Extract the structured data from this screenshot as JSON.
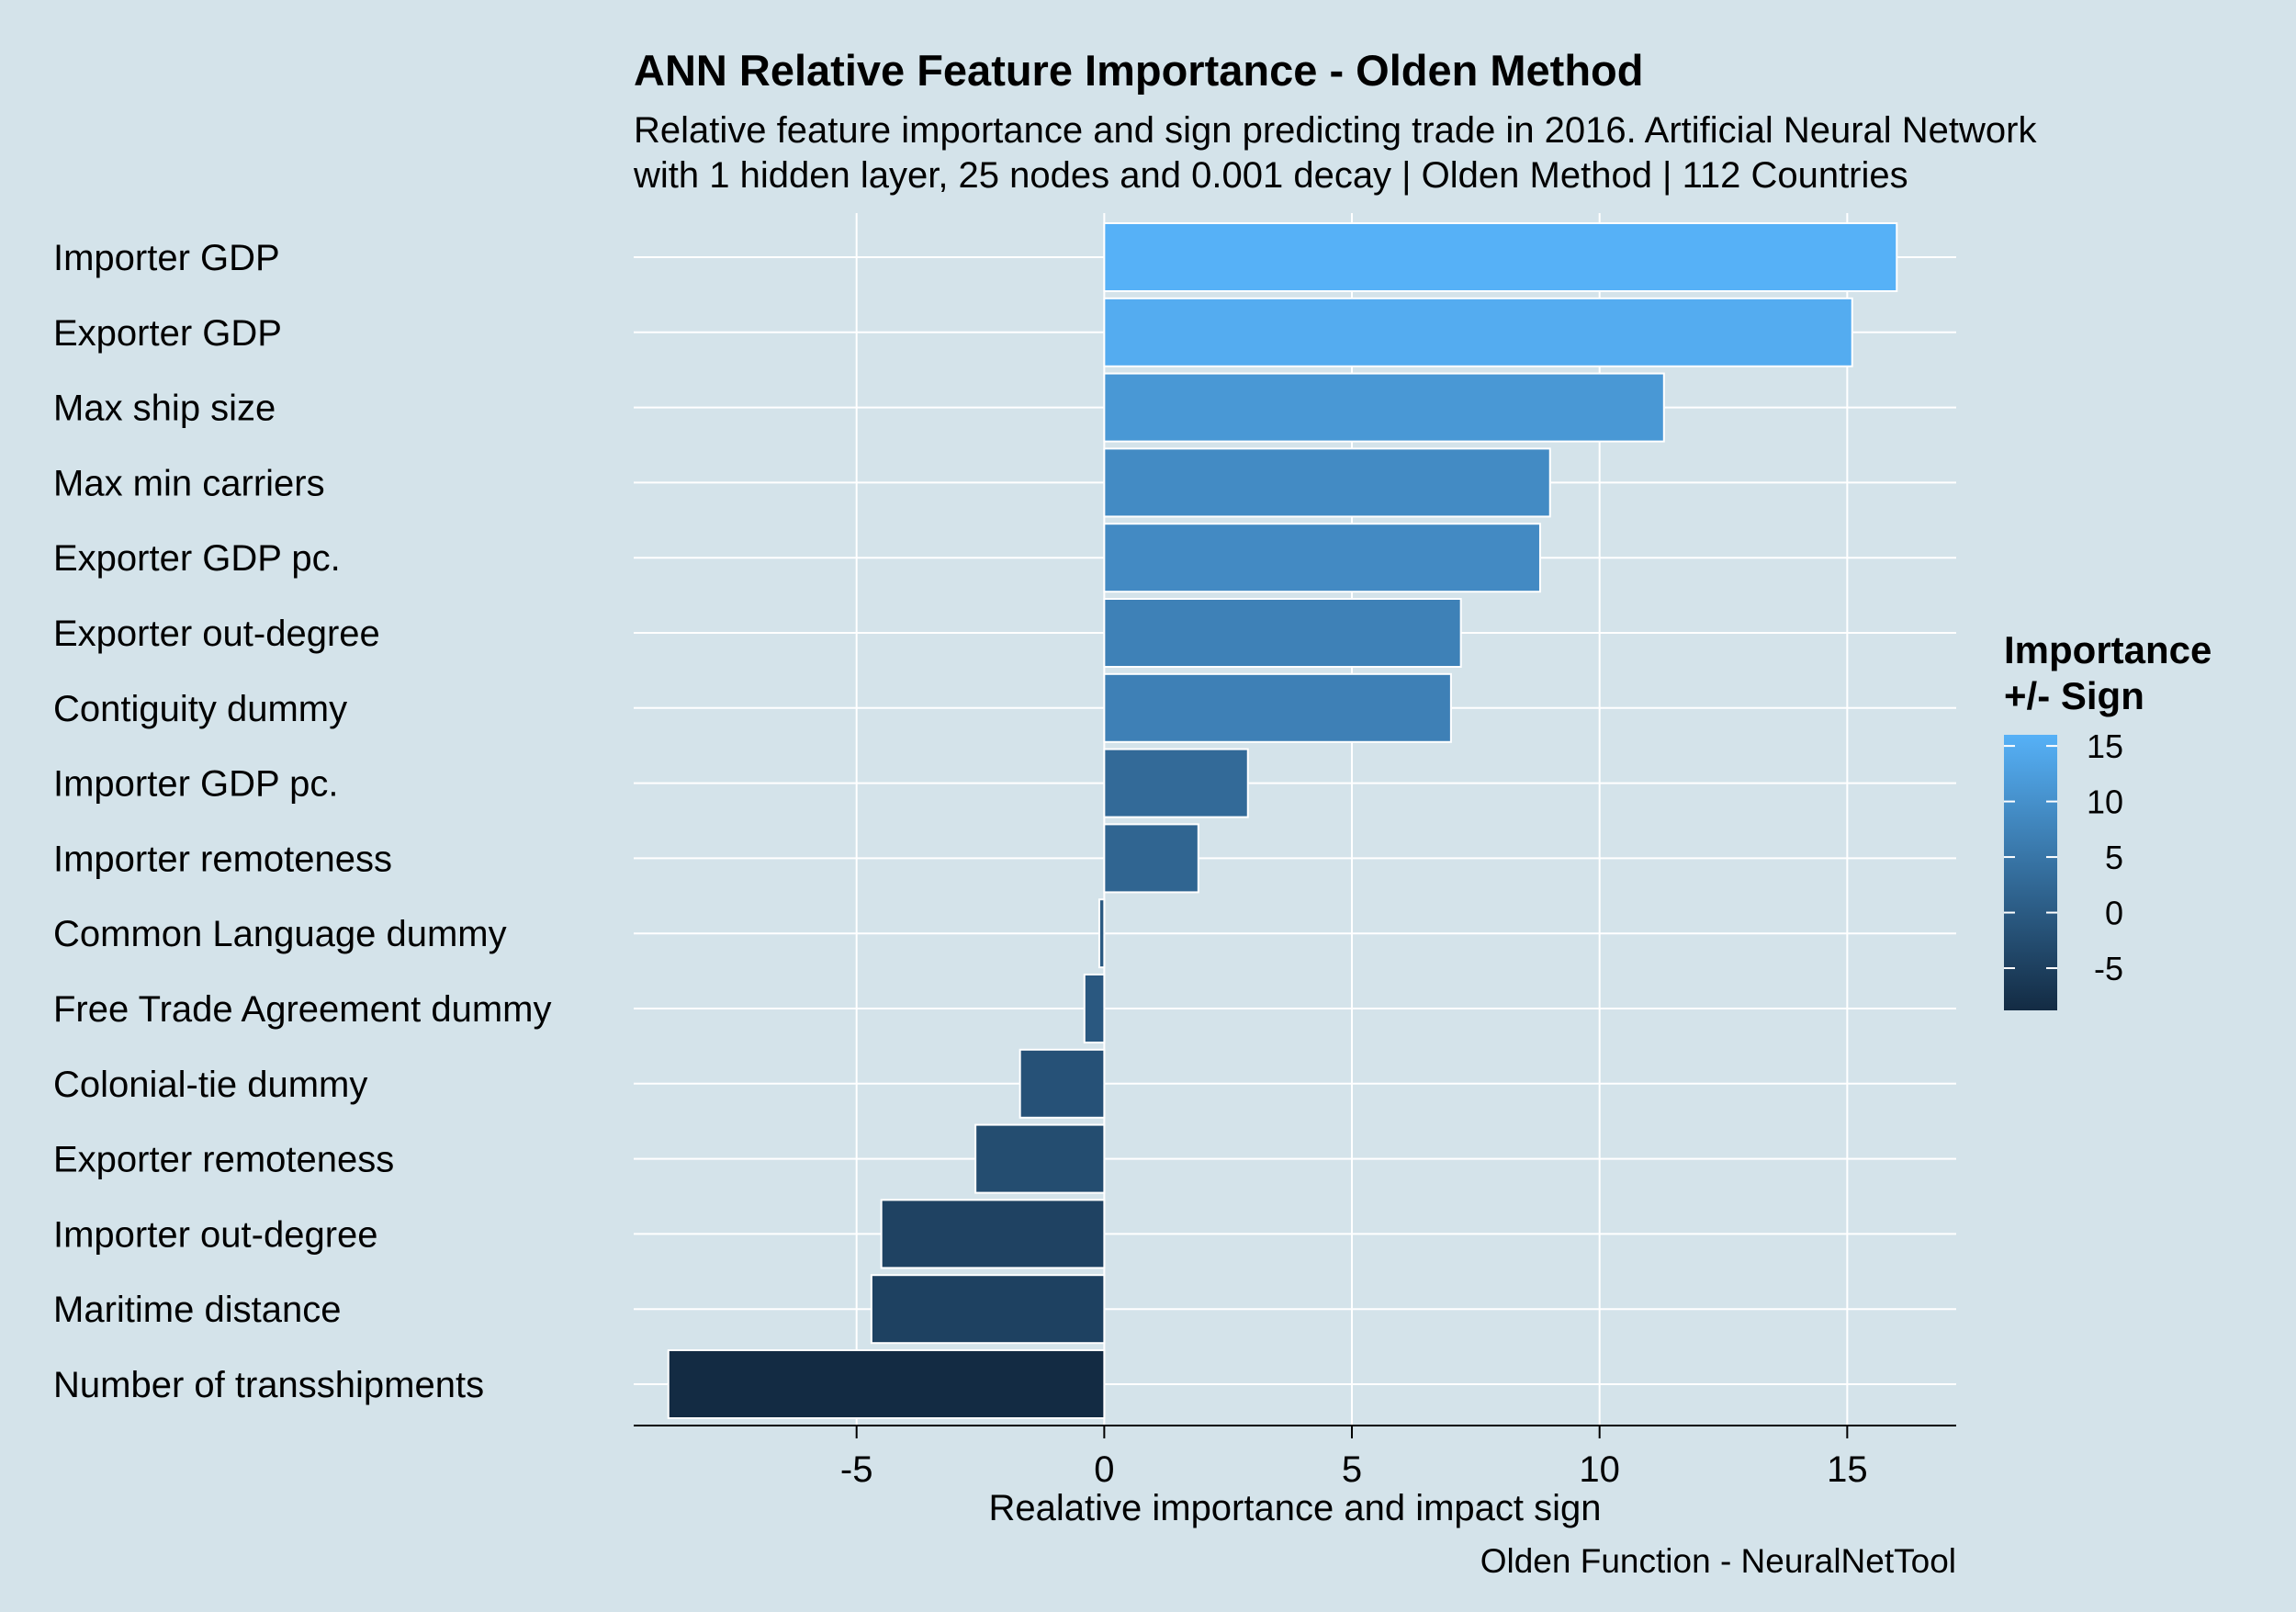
{
  "chart_data": {
    "type": "bar",
    "orientation": "horizontal",
    "title": "ANN Relative Feature Importance - Olden Method",
    "subtitle_lines": [
      "Relative feature importance and sign predicting trade in 2016. Artificial Neural Network",
      "with 1 hidden layer, 25 nodes and 0.001 decay | Olden Method | 112 Countries"
    ],
    "xlabel": "Realative importance and impact sign",
    "ylabel": "",
    "caption": "Olden Function - NeuralNetTool",
    "xlim": [
      -9.5,
      17.2
    ],
    "x_ticks": [
      -5,
      0,
      5,
      10,
      15
    ],
    "x_tick_labels": [
      "-5",
      "0",
      "5",
      "10",
      "15"
    ],
    "grid": true,
    "categories": [
      "Importer GDP",
      "Exporter GDP",
      "Max ship size",
      "Max min carriers",
      "Exporter GDP pc.",
      "Exporter out-degree",
      "Contiguity dummy",
      "Importer GDP pc.",
      "Importer remoteness",
      "Common Language dummy",
      "Free Trade Agreement dummy",
      "Colonial-tie dummy",
      "Exporter remoteness",
      "Importer out-degree",
      "Maritime distance",
      "Number of transshipments"
    ],
    "values": [
      16.0,
      15.1,
      11.3,
      9.0,
      8.8,
      7.2,
      7.0,
      2.9,
      1.9,
      -0.1,
      -0.4,
      -1.7,
      -2.6,
      -4.5,
      -4.7,
      -8.8
    ],
    "legend": {
      "title_lines": [
        "Importance",
        "+/- Sign"
      ],
      "position": "right",
      "ticks": [
        15,
        10,
        5,
        0,
        -5
      ],
      "tick_labels": [
        "15",
        "10",
        "5",
        "0",
        "-5"
      ],
      "range": [
        -8.8,
        16.0
      ],
      "color_low": "#132b43",
      "color_high": "#56b1f7"
    }
  }
}
